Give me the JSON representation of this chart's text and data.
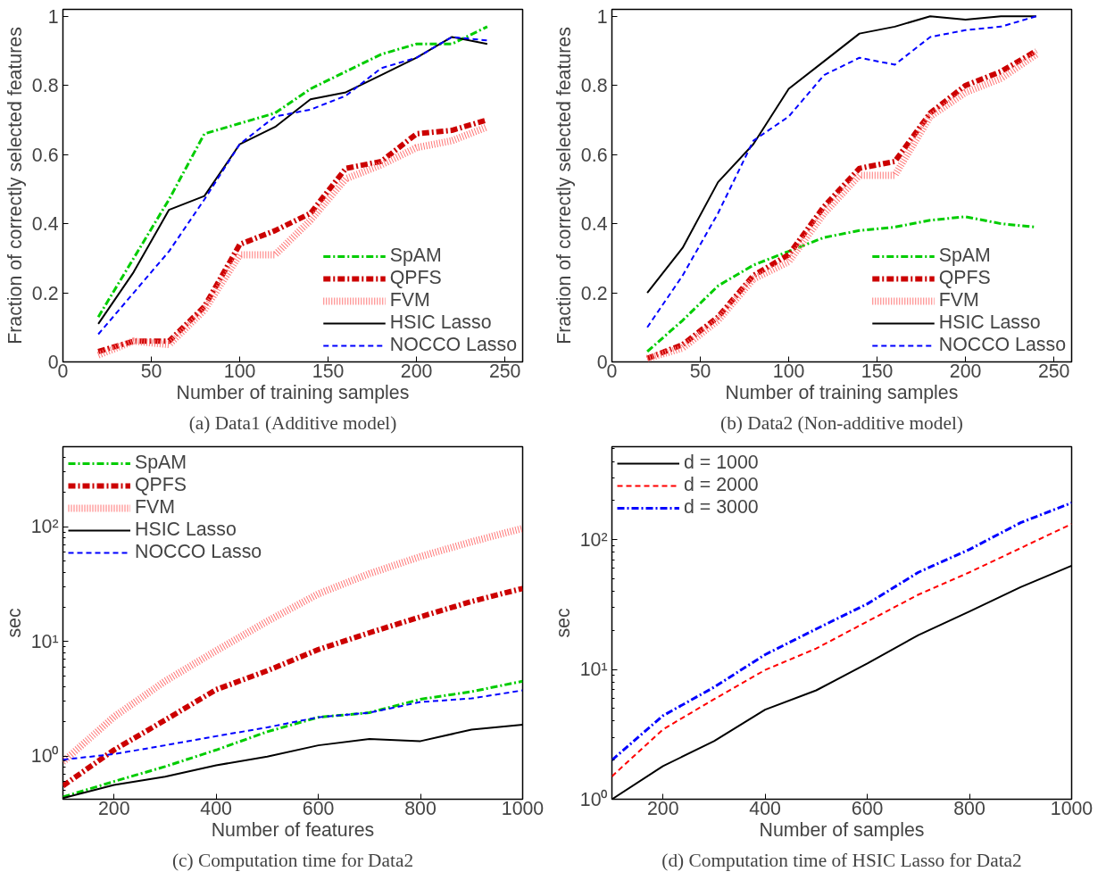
{
  "chart_data": [
    {
      "type": "line",
      "title": "(a) Data1 (Additive model)",
      "xlabel": "Number of training samples",
      "ylabel": "Fraction of correctly selected features",
      "x": [
        20,
        40,
        60,
        80,
        100,
        120,
        140,
        160,
        180,
        200,
        220,
        240
      ],
      "xlim": [
        0,
        260
      ],
      "xticks": [
        0,
        50,
        100,
        150,
        200,
        250
      ],
      "ylim": [
        0,
        1.02
      ],
      "yticks": [
        0,
        0.2,
        0.4,
        0.6,
        0.8,
        1
      ],
      "grid": false,
      "legend": "bottom right",
      "series": [
        {
          "name": "SpAM",
          "color": "#00cc00",
          "line_style": "dashdot",
          "values": [
            0.13,
            0.3,
            0.47,
            0.66,
            0.69,
            0.72,
            0.79,
            0.84,
            0.89,
            0.92,
            0.92,
            0.97
          ]
        },
        {
          "name": "QPFS",
          "color": "#cc0000",
          "line_style": "dashdot",
          "values": [
            0.03,
            0.06,
            0.06,
            0.16,
            0.34,
            0.38,
            0.43,
            0.56,
            0.58,
            0.66,
            0.67,
            0.7
          ]
        },
        {
          "name": "FVM",
          "color": "#ff7777",
          "line_style": "dotted",
          "values": [
            0.02,
            0.06,
            0.05,
            0.15,
            0.31,
            0.31,
            0.41,
            0.53,
            0.57,
            0.62,
            0.64,
            0.68
          ]
        },
        {
          "name": "HSIC Lasso",
          "color": "#000000",
          "line_style": "solid",
          "values": [
            0.11,
            0.26,
            0.44,
            0.48,
            0.63,
            0.68,
            0.76,
            0.78,
            0.83,
            0.88,
            0.94,
            0.92
          ]
        },
        {
          "name": "NOCCO Lasso",
          "color": "#0000ff",
          "line_style": "dashed",
          "values": [
            0.08,
            0.2,
            0.32,
            0.47,
            0.63,
            0.71,
            0.73,
            0.77,
            0.85,
            0.88,
            0.94,
            0.93
          ]
        }
      ]
    },
    {
      "type": "line",
      "title": "(b) Data2 (Non-additive model)",
      "xlabel": "Number of training samples",
      "ylabel": "Fraction of correctly selected features",
      "x": [
        20,
        40,
        60,
        80,
        100,
        120,
        140,
        160,
        180,
        200,
        220,
        240
      ],
      "xlim": [
        0,
        260
      ],
      "xticks": [
        0,
        50,
        100,
        150,
        200,
        250
      ],
      "ylim": [
        0,
        1.02
      ],
      "yticks": [
        0,
        0.2,
        0.4,
        0.6,
        0.8,
        1
      ],
      "grid": false,
      "legend": "bottom right",
      "series": [
        {
          "name": "SpAM",
          "color": "#00cc00",
          "line_style": "dashdot",
          "values": [
            0.03,
            0.12,
            0.22,
            0.28,
            0.32,
            0.36,
            0.38,
            0.39,
            0.41,
            0.42,
            0.4,
            0.39
          ]
        },
        {
          "name": "QPFS",
          "color": "#cc0000",
          "line_style": "dashdot",
          "values": [
            0.01,
            0.05,
            0.13,
            0.25,
            0.31,
            0.45,
            0.56,
            0.58,
            0.72,
            0.8,
            0.84,
            0.9
          ]
        },
        {
          "name": "FVM",
          "color": "#ff7777",
          "line_style": "dotted",
          "values": [
            0.01,
            0.04,
            0.12,
            0.24,
            0.29,
            0.43,
            0.54,
            0.54,
            0.71,
            0.78,
            0.82,
            0.89
          ]
        },
        {
          "name": "HSIC Lasso",
          "color": "#000000",
          "line_style": "solid",
          "values": [
            0.2,
            0.33,
            0.52,
            0.63,
            0.79,
            0.87,
            0.95,
            0.97,
            1.0,
            0.99,
            1.0,
            1.0
          ]
        },
        {
          "name": "NOCCO Lasso",
          "color": "#0000ff",
          "line_style": "dashed",
          "values": [
            0.1,
            0.25,
            0.43,
            0.64,
            0.71,
            0.83,
            0.88,
            0.86,
            0.94,
            0.96,
            0.97,
            1.0
          ]
        }
      ]
    },
    {
      "type": "line",
      "title": "(c) Computation time for Data2",
      "xlabel": "Number of features",
      "ylabel": "sec",
      "log": "y",
      "x": [
        100,
        200,
        300,
        400,
        500,
        600,
        700,
        800,
        900,
        1000
      ],
      "xlim": [
        100,
        1000
      ],
      "xticks": [
        200,
        400,
        600,
        800,
        1000
      ],
      "ylim": [
        0.42,
        500
      ],
      "yticks": [
        {
          "value": 1,
          "label": "10⁰"
        },
        {
          "value": 10,
          "label": "10¹"
        },
        {
          "value": 100,
          "label": "10²"
        }
      ],
      "grid": false,
      "legend": "top left",
      "series": [
        {
          "name": "SpAM",
          "color": "#00cc00",
          "line_style": "dashdot",
          "values": [
            0.44,
            0.6,
            0.81,
            1.13,
            1.63,
            2.18,
            2.39,
            3.13,
            3.65,
            4.5
          ]
        },
        {
          "name": "QPFS",
          "color": "#cc0000",
          "line_style": "dashdot",
          "values": [
            0.55,
            1.13,
            2.06,
            3.8,
            5.55,
            8.5,
            11.9,
            16.4,
            22.3,
            29
          ]
        },
        {
          "name": "FVM",
          "color": "#ff7777",
          "line_style": "dotted",
          "values": [
            0.89,
            2.2,
            4.5,
            8.3,
            15,
            26,
            39,
            55,
            74,
            97
          ]
        },
        {
          "name": "HSIC Lasso",
          "color": "#000000",
          "line_style": "solid",
          "values": [
            0.43,
            0.56,
            0.66,
            0.83,
            0.99,
            1.24,
            1.41,
            1.35,
            1.7,
            1.88
          ]
        },
        {
          "name": "NOCCO Lasso",
          "color": "#0000ff",
          "line_style": "dashed",
          "values": [
            0.93,
            1.04,
            1.24,
            1.49,
            1.78,
            2.18,
            2.39,
            2.96,
            3.18,
            3.74
          ]
        }
      ]
    },
    {
      "type": "line",
      "title": "(d) Computation time of HSIC Lasso for Data2",
      "xlabel": "Number of samples",
      "ylabel": "sec",
      "log": "y",
      "x": [
        100,
        200,
        300,
        400,
        500,
        600,
        700,
        800,
        900,
        1000
      ],
      "xlim": [
        100,
        1000
      ],
      "xticks": [
        200,
        400,
        600,
        800,
        1000
      ],
      "ylim": [
        1,
        520
      ],
      "yticks": [
        {
          "value": 1,
          "label": "10⁰"
        },
        {
          "value": 10,
          "label": "10¹"
        },
        {
          "value": 100,
          "label": "10²"
        }
      ],
      "grid": false,
      "legend": "top left",
      "series": [
        {
          "name": "d = 1000",
          "color": "#000000",
          "line_style": "solid",
          "values": [
            1.0,
            1.8,
            2.8,
            4.9,
            6.9,
            11.1,
            18.4,
            28,
            43,
            63
          ]
        },
        {
          "name": "d = 2000",
          "color": "#ff0000",
          "line_style": "dashed",
          "values": [
            1.5,
            3.45,
            5.9,
            9.9,
            14.5,
            23.4,
            37.7,
            56,
            86,
            132
          ]
        },
        {
          "name": "d = 3000",
          "color": "#0000ff",
          "line_style": "dashdot",
          "values": [
            2.0,
            4.4,
            7.3,
            13.0,
            20.5,
            32,
            56,
            84,
            135,
            192
          ]
        }
      ]
    }
  ]
}
